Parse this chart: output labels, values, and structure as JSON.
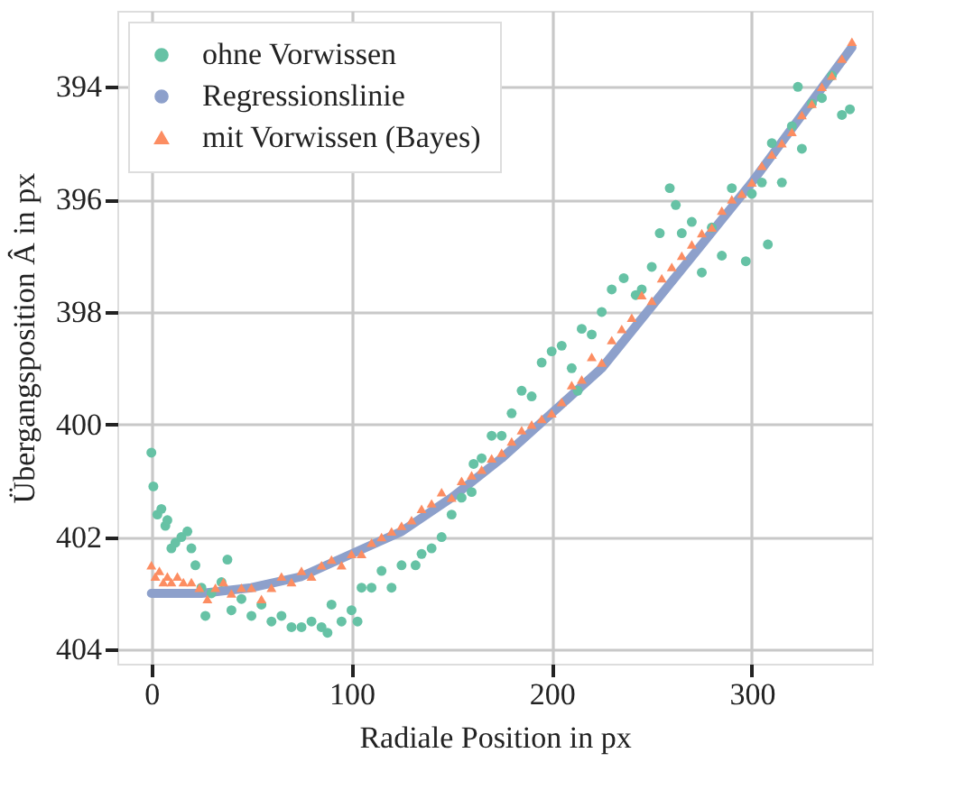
{
  "chart_data": {
    "type": "scatter",
    "xlabel": "Radiale Position in px",
    "ylabel": "Übergangsposition Â in px",
    "xlim": [
      -17,
      360
    ],
    "ylim": [
      404.25,
      392.65
    ],
    "xticks": [
      0,
      100,
      200,
      300
    ],
    "yticks": [
      394,
      396,
      398,
      400,
      402,
      404
    ],
    "grid": true,
    "legend": "top left",
    "series": [
      {
        "name": "ohne Vorwissen",
        "marker": "circle",
        "color": "#66c2a5",
        "x": [
          0,
          1,
          3,
          5,
          7,
          8,
          10,
          12,
          15,
          18,
          20,
          22,
          25,
          27,
          30,
          35,
          38,
          40,
          45,
          50,
          55,
          60,
          65,
          70,
          75,
          80,
          85,
          88,
          90,
          95,
          100,
          103,
          105,
          110,
          115,
          120,
          125,
          132,
          135,
          140,
          145,
          150,
          155,
          160,
          161,
          165,
          170,
          175,
          180,
          185,
          190,
          195,
          200,
          205,
          210,
          213,
          215,
          220,
          225,
          230,
          236,
          242,
          245,
          250,
          254,
          259,
          262,
          265,
          270,
          275,
          280,
          285,
          290,
          297,
          300,
          305,
          308,
          310,
          315,
          320,
          323,
          325,
          330,
          335,
          340,
          345,
          349
        ],
        "values": [
          400.5,
          401.1,
          401.6,
          401.5,
          401.8,
          401.7,
          402.2,
          402.1,
          402.0,
          401.9,
          402.2,
          402.5,
          402.9,
          403.4,
          403.0,
          402.8,
          402.4,
          403.3,
          403.1,
          403.4,
          403.2,
          403.5,
          403.4,
          403.6,
          403.6,
          403.5,
          403.6,
          403.7,
          403.2,
          403.5,
          403.3,
          403.5,
          402.9,
          402.9,
          402.6,
          402.9,
          402.5,
          402.5,
          402.3,
          402.2,
          402.0,
          401.6,
          401.3,
          401.2,
          400.7,
          400.6,
          400.2,
          400.2,
          399.8,
          399.4,
          399.5,
          398.9,
          398.7,
          398.6,
          399.0,
          399.4,
          398.3,
          398.4,
          398.0,
          397.6,
          397.4,
          397.7,
          397.6,
          397.2,
          396.6,
          395.8,
          396.1,
          396.6,
          396.4,
          397.3,
          396.5,
          397.0,
          395.8,
          397.1,
          395.9,
          395.7,
          396.8,
          395.0,
          395.7,
          394.7,
          394.0,
          395.1,
          394.3,
          394.2,
          393.8,
          394.5,
          394.4
        ]
      },
      {
        "name": "Regressionslinie",
        "type": "line",
        "color": "#8da0cb",
        "x": [
          0,
          25,
          50,
          75,
          100,
          125,
          150,
          175,
          200,
          225,
          250,
          275,
          300,
          325,
          350
        ],
        "values": [
          403.0,
          403.0,
          402.9,
          402.7,
          402.3,
          401.9,
          401.3,
          400.6,
          399.8,
          399.0,
          397.9,
          396.8,
          395.7,
          394.5,
          393.3
        ]
      },
      {
        "name": "mit Vorwissen (Bayes)",
        "marker": "triangle",
        "color": "#fc8d62",
        "x": [
          0,
          2,
          4,
          6,
          8,
          10,
          13,
          16,
          20,
          24,
          28,
          32,
          36,
          40,
          45,
          50,
          55,
          60,
          65,
          70,
          75,
          80,
          85,
          90,
          95,
          100,
          105,
          110,
          115,
          120,
          125,
          130,
          135,
          140,
          145,
          150,
          155,
          160,
          165,
          170,
          175,
          180,
          185,
          190,
          195,
          200,
          205,
          210,
          215,
          220,
          225,
          230,
          235,
          240,
          245,
          250,
          255,
          260,
          265,
          270,
          275,
          280,
          285,
          290,
          295,
          300,
          305,
          310,
          315,
          320,
          325,
          330,
          335,
          340,
          345,
          350
        ],
        "values": [
          402.5,
          402.7,
          402.6,
          402.8,
          402.7,
          402.8,
          402.7,
          402.8,
          402.8,
          402.9,
          403.1,
          402.9,
          402.8,
          403.0,
          402.9,
          402.9,
          403.1,
          402.9,
          402.7,
          402.8,
          402.6,
          402.7,
          402.5,
          402.4,
          402.5,
          402.3,
          402.3,
          402.1,
          402.0,
          401.9,
          401.8,
          401.7,
          401.5,
          401.4,
          401.2,
          401.3,
          401.0,
          400.9,
          400.8,
          400.6,
          400.5,
          400.3,
          400.1,
          400.0,
          399.9,
          399.8,
          399.6,
          399.3,
          399.2,
          398.8,
          398.9,
          398.5,
          398.3,
          398.1,
          397.7,
          397.8,
          397.4,
          397.2,
          397.0,
          396.8,
          396.6,
          396.5,
          396.2,
          396.0,
          395.9,
          395.7,
          395.4,
          395.2,
          395.0,
          394.8,
          394.5,
          394.3,
          394.0,
          393.8,
          393.5,
          393.2
        ]
      }
    ]
  }
}
